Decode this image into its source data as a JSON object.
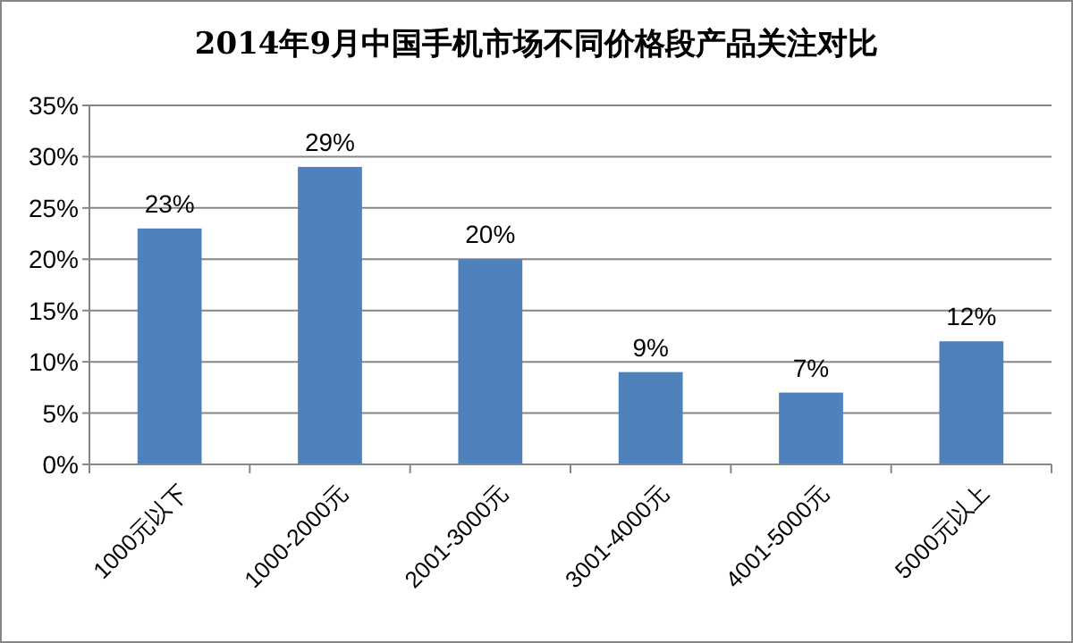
{
  "chart_data": {
    "type": "bar",
    "title": "2014年9月中国手机市场不同价格段产品关注对比",
    "categories": [
      "1000元以下",
      "1000-2000元",
      "2001-3000元",
      "3001-4000元",
      "4001-5000元",
      "5000元以上"
    ],
    "values": [
      23,
      29,
      20,
      9,
      7,
      12
    ],
    "value_labels": [
      "23%",
      "29%",
      "20%",
      "9%",
      "7%",
      "12%"
    ],
    "color": "#4f81bd",
    "ylim": [
      0,
      35
    ],
    "yticks": [
      {
        "value": 0,
        "label": "0%"
      },
      {
        "value": 5,
        "label": "5%"
      },
      {
        "value": 10,
        "label": "10%"
      },
      {
        "value": 15,
        "label": "15%"
      },
      {
        "value": 20,
        "label": "20%"
      },
      {
        "value": 25,
        "label": "25%"
      },
      {
        "value": 30,
        "label": "30%"
      },
      {
        "value": 35,
        "label": "35%"
      }
    ],
    "grid": "y"
  }
}
